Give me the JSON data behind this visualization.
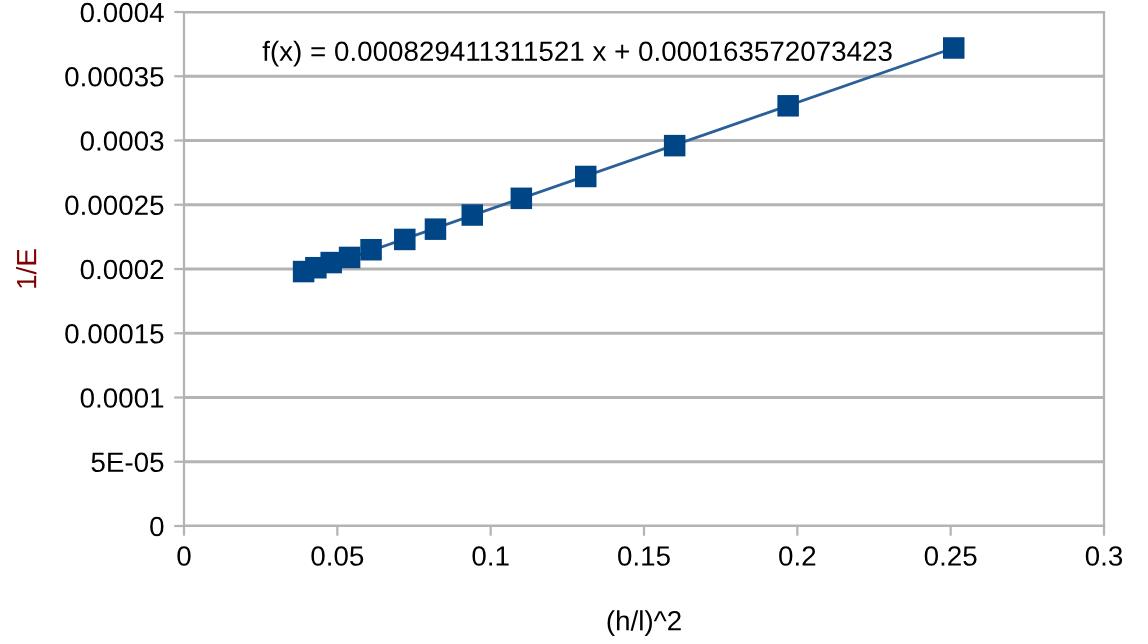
{
  "chart_data": {
    "type": "scatter",
    "xlabel": "(h/l)^2",
    "ylabel": "1/E",
    "annotations": [
      "f(x) = 0.000829411311521 x + 0.000163572073423"
    ],
    "series": [
      {
        "color": "#004586",
        "marker": "square",
        "x": [
          0.039,
          0.043,
          0.048,
          0.054,
          0.061,
          0.072,
          0.082,
          0.094,
          0.11,
          0.131,
          0.16,
          0.197,
          0.251
        ],
        "values": [
          0.000198,
          0.000201,
          0.000205,
          0.000209,
          0.000215,
          0.000223,
          0.000231,
          0.000242,
          0.000255,
          0.000272,
          0.000296,
          0.000327,
          0.000372
        ]
      },
      {
        "type": "line",
        "color": "#2a6099",
        "x": [
          0.039,
          0.251
        ],
        "values": [
          0.000196,
          0.000372
        ]
      }
    ],
    "xlim": [
      0,
      0.3
    ],
    "xticks": [
      0,
      0.05,
      0.1,
      0.15,
      0.2,
      0.25,
      0.3
    ],
    "ylim": [
      0,
      0.0004
    ],
    "yticks": [
      0,
      {
        "value": 5e-05,
        "label": "5E-05"
      },
      0.0001,
      0.00015,
      0.0002,
      0.00025,
      0.0003,
      0.00035,
      0.0004
    ],
    "grid": "y"
  }
}
